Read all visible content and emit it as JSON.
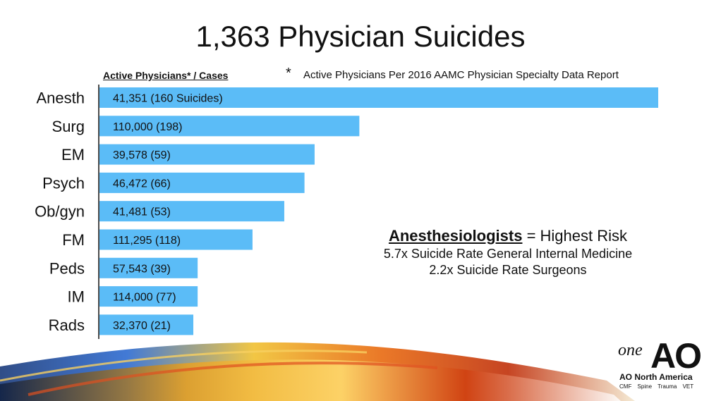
{
  "slide": {
    "title": "1,363 Physician Suicides",
    "column_header": "Active Physicians* / Cases",
    "footnote_marker": "*",
    "footnote": "Active Physicians Per 2016 AAMC Physician Specialty Data Report",
    "callout": {
      "highlight": "Anesthesiologists",
      "rest": " = Highest Risk",
      "line2": "5.7x Suicide Rate General Internal Medicine",
      "line3": "2.2x Suicide Rate Surgeons"
    },
    "logo": {
      "one": "one",
      "ao": "AO",
      "org": "AO North America",
      "divisions": "CMF Spine Trauma VET"
    }
  },
  "colors": {
    "bar": "#5bbcf7",
    "axis": "#111111",
    "text": "#111111"
  },
  "chart_data": {
    "type": "bar",
    "orientation": "horizontal",
    "categories": [
      "Anesth",
      "Surg",
      "EM",
      "Psych",
      "Ob/gyn",
      "FM",
      "Peds",
      "IM",
      "Rads"
    ],
    "bar_labels": [
      "41,351 (160 Suicides)",
      "110,000 (198)",
      "39,578 (59)",
      "46,472 (66)",
      "41,481 (53)",
      "111,295 (118)",
      "57,543 (39)",
      "114,000 (77)",
      "32,370 (21)"
    ],
    "values": [
      3.87,
      1.8,
      1.49,
      1.42,
      1.28,
      1.06,
      0.68,
      0.68,
      0.65
    ],
    "xlim": [
      0,
      3.87
    ],
    "grid": false,
    "legend": "none"
  }
}
